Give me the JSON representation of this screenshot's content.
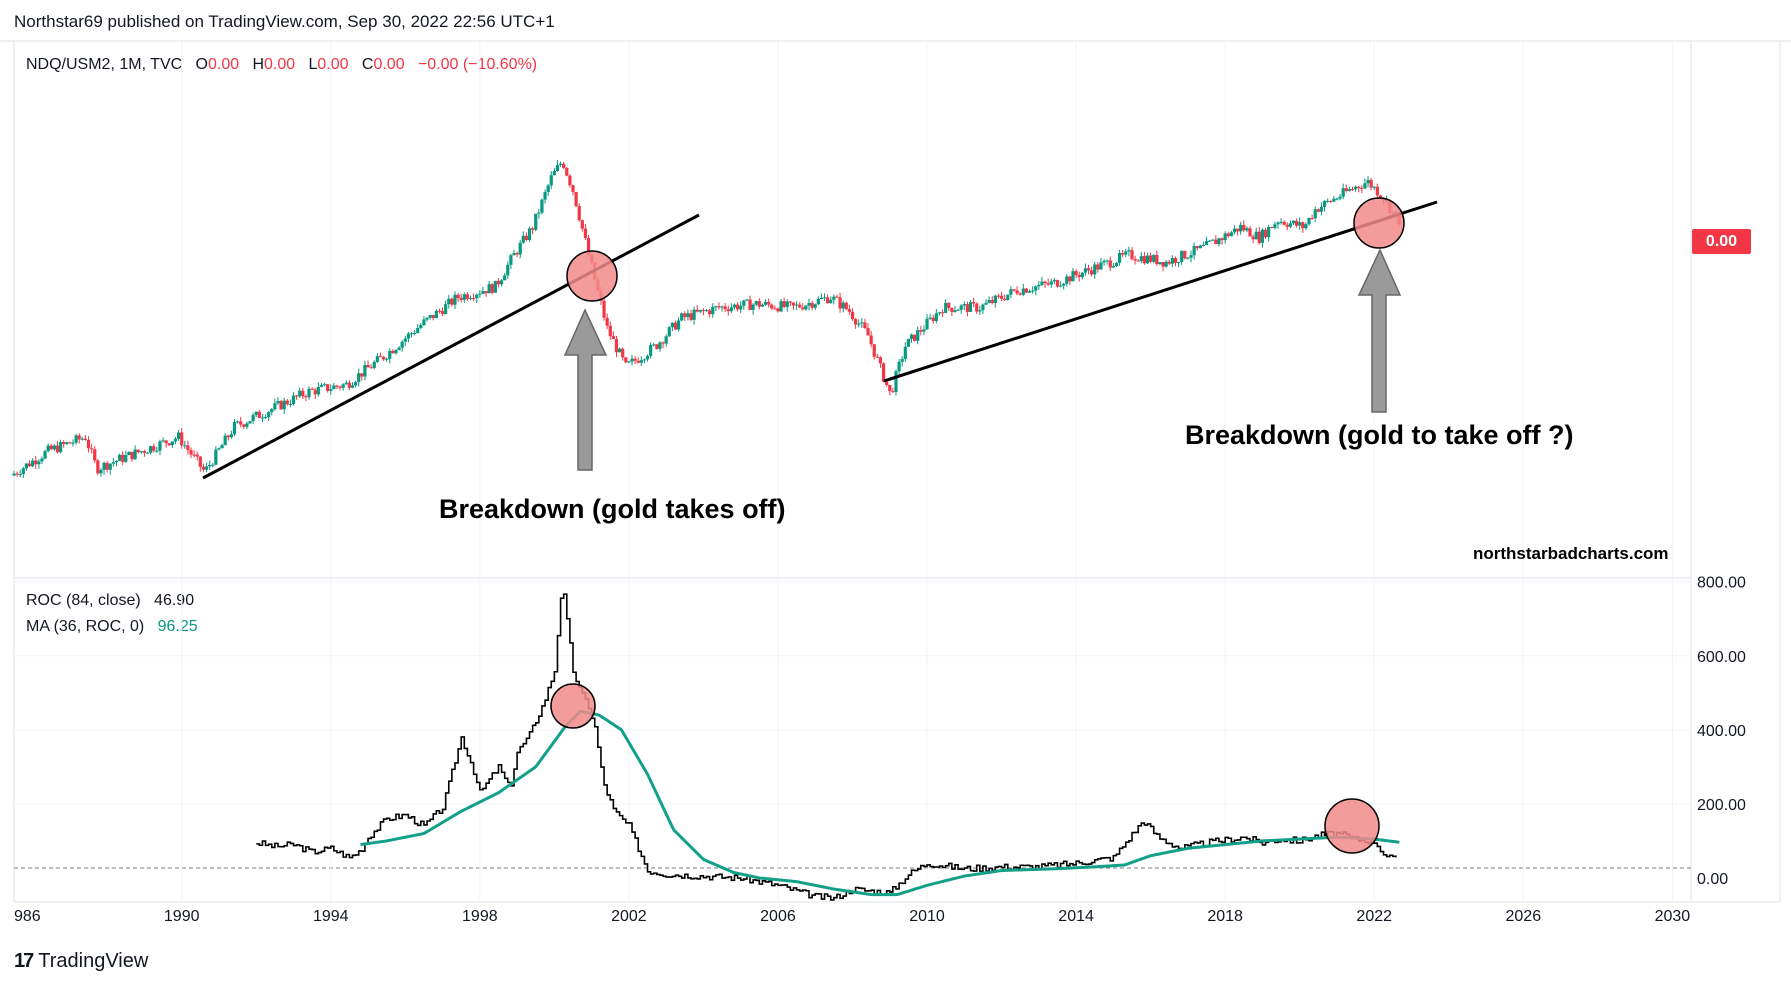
{
  "header": {
    "published": "Northstar69 published on TradingView.com, Sep 30, 2022 22:56 UTC+1"
  },
  "main_legend": {
    "symbol": "NDQ/USM2, 1M, TVC",
    "o_label": "O",
    "o_value": "0.00",
    "h_label": "H",
    "h_value": "0.00",
    "l_label": "L",
    "l_value": "0.00",
    "c_label": "C",
    "c_value": "0.00",
    "change": "−0.00 (−10.60%)"
  },
  "price_badge": "0.00",
  "annotations": {
    "left": "Breakdown (gold takes off)",
    "right": "Breakdown (gold to take off ?)",
    "site": "northstarbadcharts.com"
  },
  "roc_legend": {
    "roc_label": "ROC (84, close)",
    "roc_value": "46.90",
    "ma_label": "MA (36, ROC, 0)",
    "ma_value": "96.25"
  },
  "footer": {
    "brand": "TradingView",
    "logo": "17"
  },
  "colors": {
    "up": "#089981",
    "down": "#f23645",
    "ma": "#12a08a",
    "roc": "#000000",
    "circle": "#f28b8b"
  },
  "chart_data": [
    {
      "type": "candlestick",
      "title": "NDQ/USM2, 1M, TVC",
      "xlabel": "",
      "ylabel": "",
      "x_range": [
        1985.5,
        2030.5
      ],
      "note": "relative ratio scale (unlabeled axis), values normalized 0-100",
      "y_range": [
        0,
        100
      ],
      "series": [
        {
          "name": "NDQ/USM2",
          "x": [
            1985.5,
            1986.5,
            1987.5,
            1987.8,
            1988.5,
            1989.5,
            1990.0,
            1990.7,
            1991.5,
            1992.5,
            1993.5,
            1994.5,
            1995.5,
            1996.5,
            1997.5,
            1998.5,
            1999.0,
            1999.5,
            2000.0,
            2000.3,
            2000.6,
            2001.0,
            2001.5,
            2002.0,
            2002.8,
            2003.5,
            2004.5,
            2005.5,
            2006.5,
            2007.5,
            2008.0,
            2008.5,
            2009.1,
            2009.5,
            2010.5,
            2011.5,
            2012.5,
            2013.5,
            2014.5,
            2015.5,
            2016.5,
            2017.5,
            2018.5,
            2019.0,
            2019.5,
            2020.2,
            2020.5,
            2021.0,
            2021.5,
            2021.9,
            2022.3,
            2022.7
          ],
          "values": [
            7,
            14,
            18,
            9,
            12,
            16,
            18,
            8,
            21,
            26,
            31,
            33,
            41,
            50,
            58,
            61,
            70,
            78,
            92,
            97,
            88,
            70,
            49,
            38,
            44,
            52,
            55,
            56,
            55,
            58,
            54,
            47,
            30,
            44,
            55,
            55,
            60,
            62,
            66,
            70,
            68,
            72,
            78,
            75,
            80,
            78,
            83,
            86,
            89,
            91,
            87,
            80
          ]
        }
      ]
    },
    {
      "type": "line",
      "title": "ROC (84, close)",
      "xlabel": "",
      "ylabel": "",
      "x_range": [
        1985.5,
        2030.5
      ],
      "ylim": [
        -65,
        810
      ],
      "y_ticks": [
        "0.00",
        "200.00",
        "400.00",
        "600.00",
        "800.00"
      ],
      "x_ticks": [
        "986",
        "1990",
        "1994",
        "1998",
        "2002",
        "2006",
        "2010",
        "2014",
        "2018",
        "2022",
        "2026",
        "2030"
      ],
      "series": [
        {
          "name": "ROC (84, close)",
          "x": [
            1992.0,
            1992.5,
            1993.0,
            1993.5,
            1994.0,
            1994.5,
            1994.8,
            1995.0,
            1995.5,
            1996.0,
            1996.5,
            1997.0,
            1997.5,
            1997.8,
            1998.0,
            1998.5,
            1998.8,
            1999.0,
            1999.3,
            1999.7,
            2000.0,
            2000.2,
            2000.5,
            2000.7,
            2000.9,
            2001.1,
            2001.3,
            2001.6,
            2002.0,
            2002.5,
            2003.0,
            2004.0,
            2005.0,
            2006.0,
            2007.0,
            2007.5,
            2008.0,
            2008.5,
            2009.0,
            2009.5,
            2010.0,
            2011.0,
            2012.0,
            2013.0,
            2014.0,
            2015.0,
            2015.8,
            2016.2,
            2016.8,
            2017.5,
            2018.5,
            2019.0,
            2019.5,
            2020.0,
            2020.5,
            2021.0,
            2021.5,
            2022.0,
            2022.3,
            2022.6
          ],
          "values": [
            95,
            85,
            90,
            70,
            80,
            55,
            75,
            110,
            160,
            170,
            140,
            190,
            380,
            300,
            230,
            300,
            240,
            340,
            380,
            470,
            560,
            800,
            560,
            500,
            470,
            400,
            260,
            180,
            140,
            20,
            10,
            5,
            0,
            -20,
            -50,
            -55,
            -30,
            -35,
            -40,
            10,
            40,
            25,
            30,
            30,
            40,
            55,
            155,
            110,
            80,
            95,
            110,
            95,
            105,
            100,
            115,
            120,
            105,
            100,
            60,
            47
          ]
        },
        {
          "name": "MA (36, ROC, 0)",
          "x": [
            1994.8,
            1995.5,
            1996.5,
            1997.5,
            1998.5,
            1999.5,
            2000.3,
            2000.7,
            2001.2,
            2001.8,
            2002.5,
            2003.2,
            2004.0,
            2004.8,
            2005.5,
            2006.5,
            2007.5,
            2008.5,
            2009.2,
            2010.0,
            2011.0,
            2012.0,
            2013.5,
            2014.5,
            2015.3,
            2016.0,
            2017.0,
            2018.0,
            2019.0,
            2020.0,
            2021.0,
            2022.0,
            2022.7
          ],
          "values": [
            90,
            100,
            120,
            180,
            230,
            300,
            410,
            450,
            440,
            400,
            280,
            130,
            50,
            15,
            0,
            -10,
            -30,
            -45,
            -45,
            -20,
            5,
            20,
            25,
            30,
            35,
            60,
            80,
            90,
            100,
            105,
            110,
            105,
            96
          ]
        }
      ]
    }
  ]
}
